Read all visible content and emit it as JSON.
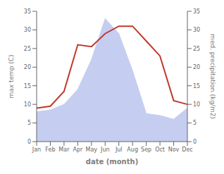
{
  "chart_data": {
    "type": "line",
    "categories": [
      "Jan",
      "Feb",
      "Mar",
      "Apr",
      "May",
      "Jun",
      "Jul",
      "Aug",
      "Sep",
      "Oct",
      "Nov",
      "Dec"
    ],
    "series": [
      {
        "type": "area",
        "axis": "y2",
        "color": "#c5cdf0",
        "values": [
          8.0,
          8.5,
          10.0,
          14.0,
          22.0,
          33.0,
          29.0,
          19.0,
          7.5,
          7.0,
          6.0,
          9.0
        ]
      },
      {
        "type": "line",
        "color": "#c0392b",
        "values": [
          9.0,
          9.5,
          13.5,
          26.0,
          25.5,
          29.0,
          31.0,
          31.0,
          27.0,
          23.0,
          11.0,
          10.0
        ]
      }
    ],
    "xlabel": "date (month)",
    "ylabel": "max temp (C)",
    "y2label": "med. precipitation (kg/m2)",
    "ylim": [
      0,
      35
    ],
    "yticks": [
      0,
      5,
      10,
      15,
      20,
      25,
      30,
      35
    ],
    "y2lim": [
      0,
      35
    ],
    "y2ticks": [
      0,
      5,
      10,
      15,
      20,
      25,
      30,
      35
    ],
    "grid": false
  }
}
